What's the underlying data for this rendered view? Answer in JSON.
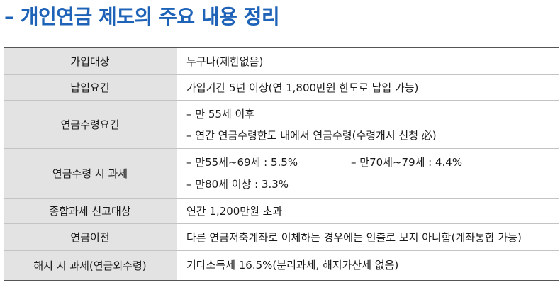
{
  "title": "– 개인연금 제도의 주요 내용 정리",
  "rows": [
    {
      "label": "가입대상",
      "lines": [
        "누구나(제한없음)"
      ]
    },
    {
      "label": "납입요건",
      "lines": [
        "가입기간 5년 이상(연 1,800만원 한도로 납입 가능)"
      ]
    },
    {
      "label": "연금수령요건",
      "lines": [
        "– 만 55세 이후",
        "– 연간 연금수령한도 내에서 연금수령(수령개시 신청 必)"
      ]
    },
    {
      "label": "연금수령 시 과세",
      "lines": [
        "– 만55세~69세 : 5.5%",
        "– 만70세~79세 : 4.4%",
        "– 만80세 이상 : 3.3%"
      ]
    },
    {
      "label": "종합과세 신고대상",
      "lines": [
        "연간 1,200만원 초과"
      ]
    },
    {
      "label": "연금이전",
      "lines": [
        "다른 연금저축계좌로 이체하는 경우에는 인출로 보지 아니함(계좌통합 가능)"
      ]
    },
    {
      "label": "해지 시 과세(연금외수령)",
      "lines": [
        "기타소득세 16.5%(분리과세, 해지가산세 없음)"
      ]
    }
  ]
}
